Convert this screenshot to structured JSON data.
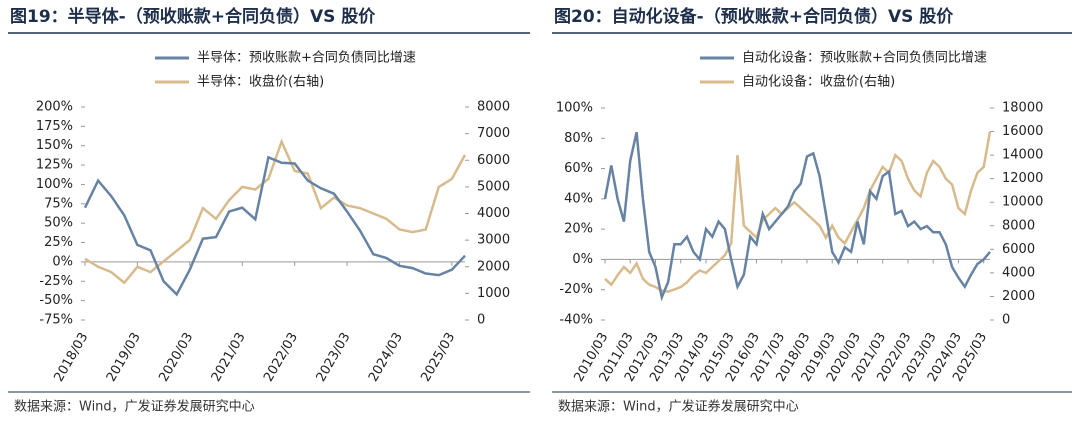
{
  "chart_data": [
    {
      "type": "line",
      "title": "图19：半导体-（预收账款+合同负债）VS 股价",
      "source": "数据来源：Wind，广发证券发展研究中心",
      "legend": "top",
      "categories": [
        "2018/03",
        null,
        null,
        null,
        "2019/03",
        null,
        null,
        null,
        "2020/03",
        null,
        null,
        null,
        "2021/03",
        null,
        null,
        null,
        "2022/03",
        null,
        null,
        null,
        "2023/03",
        null,
        null,
        null,
        "2024/03",
        null,
        null,
        null,
        "2025/03",
        null
      ],
      "ylim": [
        -75,
        200
      ],
      "yticks": [
        {
          "value": -75,
          "label": "-75%"
        },
        {
          "value": -50,
          "label": "-50%"
        },
        {
          "value": -25,
          "label": "-25%"
        },
        {
          "value": 0,
          "label": "0%"
        },
        {
          "value": 25,
          "label": "25%"
        },
        {
          "value": 50,
          "label": "50%"
        },
        {
          "value": 75,
          "label": "75%"
        },
        {
          "value": 100,
          "label": "100%"
        },
        {
          "value": 125,
          "label": "125%"
        },
        {
          "value": 150,
          "label": "150%"
        },
        {
          "value": 175,
          "label": "175%"
        },
        {
          "value": 200,
          "label": "200%"
        }
      ],
      "y2lim": [
        0,
        8000
      ],
      "y2ticks": [
        0,
        1000,
        2000,
        3000,
        4000,
        5000,
        6000,
        7000,
        8000
      ],
      "series": [
        {
          "name": "半导体：预收账款+合同负债同比增速",
          "color": "#6683a3",
          "values": [
            70,
            105,
            85,
            60,
            22,
            15,
            -25,
            -42,
            -10,
            30,
            32,
            65,
            70,
            55,
            135,
            128,
            127,
            105,
            95,
            88,
            65,
            40,
            10,
            5,
            -5,
            -8,
            -15,
            -17,
            -10,
            8
          ]
        },
        {
          "name": "半导体：收盘价(右轴)",
          "color": "#d8bb8c",
          "axis": "y2",
          "values": [
            2300,
            2000,
            1800,
            1400,
            2000,
            1800,
            2200,
            2600,
            3000,
            4200,
            3800,
            4500,
            5000,
            4900,
            5300,
            6700,
            5600,
            5500,
            4200,
            4600,
            4300,
            4200,
            4000,
            3800,
            3400,
            3300,
            3400,
            5000,
            5300,
            6200
          ]
        }
      ]
    },
    {
      "type": "line",
      "title": "图20：自动化设备-（预收账款+合同负债）VS 股价",
      "source": "数据来源：Wind，广发证券发展研究中心",
      "legend": "top",
      "categories": [
        "2010/03",
        null,
        null,
        null,
        "2011/03",
        null,
        null,
        null,
        "2012/03",
        null,
        null,
        null,
        "2013/03",
        null,
        null,
        null,
        "2014/03",
        null,
        null,
        null,
        "2015/03",
        null,
        null,
        null,
        "2016/03",
        null,
        null,
        null,
        "2017/03",
        null,
        null,
        null,
        "2018/03",
        null,
        null,
        null,
        "2019/03",
        null,
        null,
        null,
        "2020/03",
        null,
        null,
        null,
        "2021/03",
        null,
        null,
        null,
        "2022/03",
        null,
        null,
        null,
        "2023/03",
        null,
        null,
        null,
        "2024/03",
        null,
        null,
        null,
        "2025/03",
        null
      ],
      "ylim": [
        -40,
        100
      ],
      "yticks": [
        {
          "value": -40,
          "label": "-40%"
        },
        {
          "value": -20,
          "label": "-20%"
        },
        {
          "value": 0,
          "label": "0%"
        },
        {
          "value": 20,
          "label": "20%"
        },
        {
          "value": 40,
          "label": "40%"
        },
        {
          "value": 60,
          "label": "60%"
        },
        {
          "value": 80,
          "label": "80%"
        },
        {
          "value": 100,
          "label": "100%"
        }
      ],
      "y2lim": [
        0,
        18000
      ],
      "y2ticks": [
        0,
        2000,
        4000,
        6000,
        8000,
        10000,
        12000,
        14000,
        16000,
        18000
      ],
      "series": [
        {
          "name": "自动化设备：预收账款+合同负债同比增速",
          "color": "#6683a3",
          "values": [
            40,
            62,
            40,
            25,
            65,
            84,
            40,
            5,
            -5,
            -25,
            -15,
            10,
            10,
            15,
            5,
            0,
            20,
            15,
            25,
            20,
            0,
            -18,
            -10,
            15,
            10,
            30,
            20,
            25,
            30,
            35,
            45,
            50,
            68,
            70,
            55,
            30,
            5,
            -2,
            8,
            5,
            25,
            10,
            45,
            40,
            55,
            58,
            30,
            32,
            22,
            25,
            20,
            22,
            18,
            18,
            10,
            -5,
            -12,
            -18,
            -10,
            -3,
            0,
            5
          ]
        },
        {
          "name": "自动化设备：收盘价(右轴)",
          "color": "#d8bb8c",
          "axis": "y2",
          "values": [
            3500,
            3000,
            3800,
            4500,
            4000,
            4800,
            3500,
            3000,
            2800,
            2500,
            2400,
            2600,
            2800,
            3200,
            3800,
            4200,
            4000,
            4500,
            5000,
            5500,
            6500,
            14000,
            8000,
            7500,
            7000,
            8500,
            9000,
            9500,
            9000,
            9500,
            10000,
            9500,
            9000,
            8500,
            8000,
            7000,
            8000,
            7000,
            6500,
            7500,
            8500,
            9500,
            11000,
            12000,
            13000,
            12500,
            14000,
            13500,
            12000,
            11000,
            10500,
            12500,
            13500,
            13000,
            12000,
            11500,
            9500,
            9000,
            11000,
            12500,
            13000,
            16000
          ]
        }
      ]
    }
  ]
}
